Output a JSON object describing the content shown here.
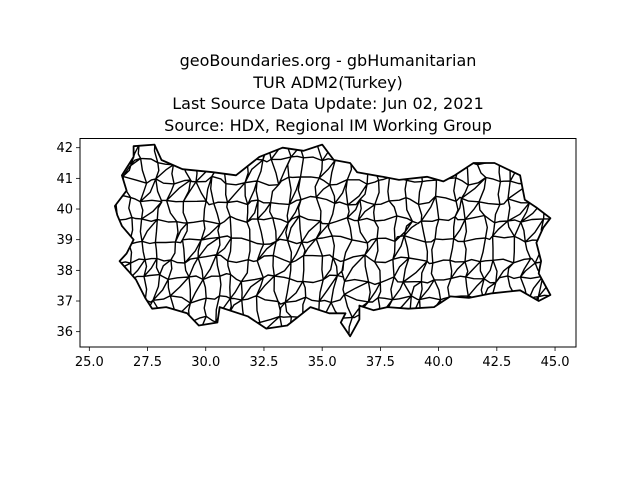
{
  "figure": {
    "title_lines": [
      "geoBoundaries.org - gbHumanitarian",
      "TUR ADM2(Turkey)",
      "Last Source Data Update: Jun 02, 2021",
      "Source: HDX, Regional IM Working Group"
    ]
  },
  "chart_data": {
    "type": "map",
    "xlim": [
      24.6,
      45.9
    ],
    "ylim": [
      35.5,
      42.3
    ],
    "x_ticks": [
      25.0,
      27.5,
      30.0,
      32.5,
      35.0,
      37.5,
      40.0,
      42.5,
      45.0
    ],
    "x_tick_labels": [
      "25.0",
      "27.5",
      "30.0",
      "32.5",
      "35.0",
      "37.5",
      "40.0",
      "42.5",
      "45.0"
    ],
    "y_ticks": [
      36,
      37,
      38,
      39,
      40,
      41,
      42
    ],
    "y_tick_labels": [
      "36",
      "37",
      "38",
      "39",
      "40",
      "41",
      "42"
    ],
    "grid": false,
    "fill_color": "#ffffff",
    "edge_color": "#000000",
    "outline": [
      [
        26.1,
        40.1
      ],
      [
        26.6,
        40.6
      ],
      [
        26.4,
        41.1
      ],
      [
        26.9,
        41.7
      ],
      [
        26.9,
        42.05
      ],
      [
        27.8,
        42.1
      ],
      [
        28.1,
        41.6
      ],
      [
        29.0,
        41.3
      ],
      [
        30.3,
        41.2
      ],
      [
        31.3,
        41.1
      ],
      [
        32.3,
        41.7
      ],
      [
        33.3,
        42.0
      ],
      [
        34.2,
        41.9
      ],
      [
        35.0,
        42.1
      ],
      [
        35.5,
        41.6
      ],
      [
        36.2,
        41.5
      ],
      [
        36.5,
        41.2
      ],
      [
        37.6,
        41.05
      ],
      [
        38.3,
        40.95
      ],
      [
        39.5,
        41.05
      ],
      [
        40.2,
        40.9
      ],
      [
        40.7,
        41.1
      ],
      [
        41.5,
        41.5
      ],
      [
        42.4,
        41.5
      ],
      [
        43.5,
        41.1
      ],
      [
        43.6,
        40.7
      ],
      [
        43.7,
        40.3
      ],
      [
        44.2,
        40.05
      ],
      [
        44.8,
        39.7
      ],
      [
        44.5,
        39.4
      ],
      [
        44.2,
        38.9
      ],
      [
        44.4,
        38.3
      ],
      [
        44.3,
        37.9
      ],
      [
        44.8,
        37.2
      ],
      [
        44.3,
        37.0
      ],
      [
        43.5,
        37.35
      ],
      [
        42.3,
        37.25
      ],
      [
        41.3,
        37.1
      ],
      [
        40.5,
        37.15
      ],
      [
        39.8,
        36.8
      ],
      [
        38.7,
        36.75
      ],
      [
        37.8,
        36.8
      ],
      [
        37.2,
        36.7
      ],
      [
        36.6,
        36.85
      ],
      [
        36.6,
        36.4
      ],
      [
        36.2,
        35.85
      ],
      [
        35.8,
        36.3
      ],
      [
        36.0,
        36.6
      ],
      [
        35.3,
        36.6
      ],
      [
        34.5,
        36.8
      ],
      [
        33.5,
        36.2
      ],
      [
        32.6,
        36.1
      ],
      [
        31.8,
        36.5
      ],
      [
        30.6,
        36.8
      ],
      [
        30.5,
        36.3
      ],
      [
        29.7,
        36.2
      ],
      [
        29.2,
        36.6
      ],
      [
        28.3,
        36.8
      ],
      [
        27.7,
        36.75
      ],
      [
        27.4,
        37.1
      ],
      [
        27.0,
        37.7
      ],
      [
        26.3,
        38.3
      ],
      [
        26.6,
        38.55
      ],
      [
        26.9,
        39.0
      ],
      [
        26.4,
        39.45
      ],
      [
        26.2,
        39.8
      ]
    ]
  }
}
